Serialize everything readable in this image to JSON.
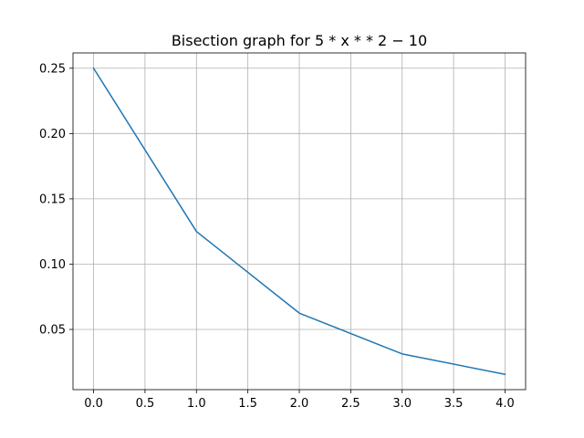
{
  "chart_data": {
    "type": "line",
    "title": "Bisection graph for 5 * x * * 2 − 10",
    "xlabel": "",
    "ylabel": "",
    "x": [
      0,
      1,
      2,
      3,
      4
    ],
    "series": [
      {
        "values": [
          0.25,
          0.125,
          0.0625,
          0.03125,
          0.015625
        ],
        "color": "#1f77b4"
      }
    ],
    "xlim": [
      -0.2,
      4.2
    ],
    "ylim": [
      0.003906,
      0.261719
    ],
    "xticks": [
      0.0,
      0.5,
      1.0,
      1.5,
      2.0,
      2.5,
      3.0,
      3.5,
      4.0
    ],
    "xtick_labels": [
      "0.0",
      "0.5",
      "1.0",
      "1.5",
      "2.0",
      "2.5",
      "3.0",
      "3.5",
      "4.0"
    ],
    "yticks": [
      0.05,
      0.1,
      0.15,
      0.2,
      0.25
    ],
    "ytick_labels": [
      "0.05",
      "0.10",
      "0.15",
      "0.20",
      "0.25"
    ],
    "grid": true,
    "legend": "none"
  }
}
